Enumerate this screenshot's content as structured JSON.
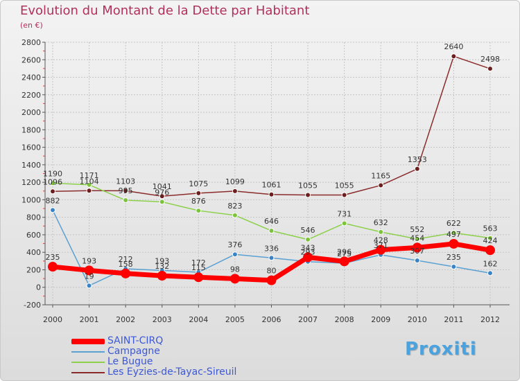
{
  "chart_data": {
    "type": "line",
    "title": "Evolution du Montant de la Dette par Habitant",
    "subtitle": "(en €)",
    "x": [
      "2000",
      "2001",
      "2002",
      "2003",
      "2004",
      "2005",
      "2006",
      "2007",
      "2008",
      "2009",
      "2010",
      "2011",
      "2012"
    ],
    "ylim": [
      -200,
      2800
    ],
    "yticks": [
      -200,
      0,
      200,
      400,
      600,
      800,
      1000,
      1200,
      1400,
      1600,
      1800,
      2000,
      2200,
      2400,
      2600,
      2800
    ],
    "grid": true,
    "legend_position": "bottom-left",
    "series": [
      {
        "name": "SAINT-CIRQ",
        "color": "#ff0000",
        "marker_color": "#ff0000",
        "values": [
          235,
          193,
          158,
          132,
          115,
          98,
          80,
          343,
          296,
          428,
          454,
          497,
          424
        ],
        "labels": [
          "235",
          "193",
          "158",
          "132",
          "115",
          "98",
          "80",
          "343",
          "296",
          "428",
          "454",
          "497",
          "424"
        ]
      },
      {
        "name": "Campagne",
        "color": "#5aa0d2",
        "marker_color": "#3a84c6",
        "values": [
          882,
          19,
          212,
          193,
          172,
          376,
          336,
          293,
          275,
          371,
          307,
          235,
          162
        ],
        "labels": [
          "882",
          "19",
          "212",
          "193",
          "172",
          "376",
          "336",
          "293",
          "275",
          "371",
          "307",
          "235",
          "162"
        ]
      },
      {
        "name": "Le Bugue",
        "color": "#8cd04a",
        "marker_color": "#7cc43c",
        "values": [
          1190,
          1171,
          995,
          976,
          876,
          823,
          646,
          546,
          731,
          632,
          552,
          622,
          563
        ],
        "labels": [
          "1190",
          "1171",
          "995",
          "976",
          "876",
          "823",
          "646",
          "546",
          "731",
          "632",
          "552",
          "622",
          "563"
        ]
      },
      {
        "name": "Les Eyzies-de-Tayac-Sireuil",
        "color": "#8a2b2b",
        "marker_color": "#6b1f1f",
        "values": [
          1096,
          1104,
          1103,
          1041,
          1075,
          1099,
          1061,
          1055,
          1055,
          1165,
          1353,
          2640,
          2498
        ],
        "labels": [
          "1096",
          "1104",
          "1103",
          "1041",
          "1075",
          "1099",
          "1061",
          "1055",
          "1055",
          "1165",
          "1353",
          "2640",
          "2498"
        ]
      }
    ]
  },
  "logo_text": "Proxiti"
}
